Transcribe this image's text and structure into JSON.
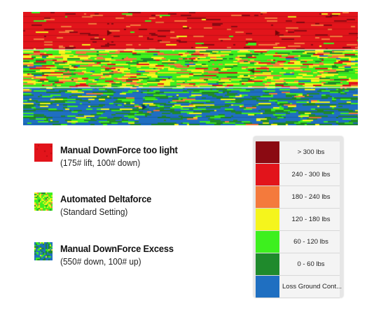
{
  "legend_items": [
    {
      "title": "Manual DownForce too light",
      "subtitle": "(175# lift, 100# down)",
      "swatch": "red"
    },
    {
      "title": "Automated Deltaforce",
      "subtitle": "(Standard Setting)",
      "swatch": "mixed"
    },
    {
      "title": "Manual DownForce Excess",
      "subtitle": "(550# down, 100# up)",
      "swatch": "blue"
    }
  ],
  "scale": [
    {
      "label": "> 300 lbs",
      "color": "#8b0a12"
    },
    {
      "label": "240 - 300 lbs",
      "color": "#e2141b"
    },
    {
      "label": "180 - 240 lbs",
      "color": "#f47a3c"
    },
    {
      "label": "120 - 180 lbs",
      "color": "#f5f51c"
    },
    {
      "label": "60 - 120 lbs",
      "color": "#3df01e"
    },
    {
      "label": "0 - 60 lbs",
      "color": "#1f8a2c"
    },
    {
      "label": "Loss Ground Cont...",
      "color": "#1f6fc1"
    }
  ]
}
